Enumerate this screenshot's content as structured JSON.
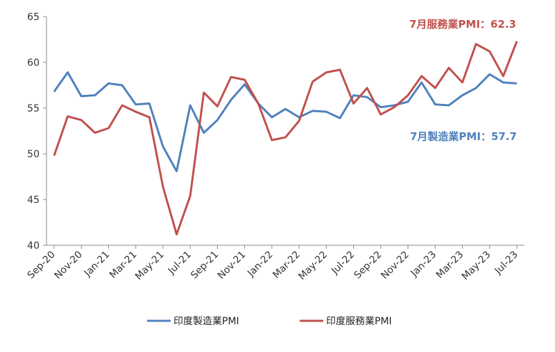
{
  "chart_data": {
    "type": "line",
    "x": [
      "Sep-20",
      "Oct-20",
      "Nov-20",
      "Dec-20",
      "Jan-21",
      "Feb-21",
      "Mar-21",
      "Apr-21",
      "May-21",
      "Jun-21",
      "Jul-21",
      "Aug-21",
      "Sep-21",
      "Oct-21",
      "Nov-21",
      "Dec-21",
      "Jan-22",
      "Feb-22",
      "Mar-22",
      "Apr-22",
      "May-22",
      "Jun-22",
      "Jul-22",
      "Aug-22",
      "Sep-22",
      "Oct-22",
      "Nov-22",
      "Dec-22",
      "Jan-23",
      "Feb-23",
      "Mar-23",
      "Apr-23",
      "May-23",
      "Jun-23",
      "Jul-23"
    ],
    "tick_labels": [
      "Sep-20",
      "Nov-20",
      "Jan-21",
      "Mar-21",
      "May-21",
      "Jul-21",
      "Sep-21",
      "Nov-21",
      "Jan-22",
      "Mar-22",
      "May-22",
      "Jul-22",
      "Sep-22",
      "Nov-22",
      "Jan-23",
      "Mar-23",
      "May-23",
      "Jul-23"
    ],
    "ylim": [
      40,
      65
    ],
    "yticks": [
      40,
      45,
      50,
      55,
      60,
      65
    ],
    "grid": false,
    "legend": "bottom",
    "series": [
      {
        "name": "印度製造業PMI",
        "color": "#4f81bd",
        "values": [
          56.8,
          58.9,
          56.3,
          56.4,
          57.7,
          57.5,
          55.4,
          55.5,
          50.8,
          48.1,
          55.3,
          52.3,
          53.7,
          55.9,
          57.6,
          55.5,
          54.0,
          54.9,
          54.0,
          54.7,
          54.6,
          53.9,
          56.4,
          56.2,
          55.1,
          55.3,
          55.7,
          57.8,
          55.4,
          55.3,
          56.4,
          57.2,
          58.7,
          57.8,
          57.7
        ]
      },
      {
        "name": "印度服務業PMI",
        "color": "#c0504d",
        "values": [
          49.8,
          54.1,
          53.7,
          52.3,
          52.8,
          55.3,
          54.6,
          54.0,
          46.4,
          41.2,
          45.4,
          56.7,
          55.2,
          58.4,
          58.1,
          55.5,
          51.5,
          51.8,
          53.6,
          57.9,
          58.9,
          59.2,
          55.5,
          57.2,
          54.3,
          55.1,
          56.4,
          58.5,
          57.2,
          59.4,
          57.8,
          62.0,
          61.2,
          58.5,
          62.3
        ]
      }
    ],
    "annotations": [
      {
        "text": "7月服務業PMI：62.3",
        "color": "#c0504d"
      },
      {
        "text": "7月製造業PMI：57.7",
        "color": "#4f81bd"
      }
    ]
  }
}
